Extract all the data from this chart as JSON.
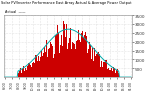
{
  "title": "Solar PV/Inverter Performance East Array Actual & Average Power Output",
  "bg_color": "#ffffff",
  "plot_bg_color": "#ffffff",
  "bar_color": "#cc0000",
  "avg_line_color": "#00aaaa",
  "grid_color": "#aaaaaa",
  "text_color": "#000000",
  "tick_color": "#333333",
  "ylim": [
    0,
    3500
  ],
  "yticks": [
    500,
    1000,
    1500,
    2000,
    2500,
    3000,
    3500
  ],
  "num_bars": 144,
  "peak_index": 72,
  "peak_value": 3300,
  "sigma": 28
}
